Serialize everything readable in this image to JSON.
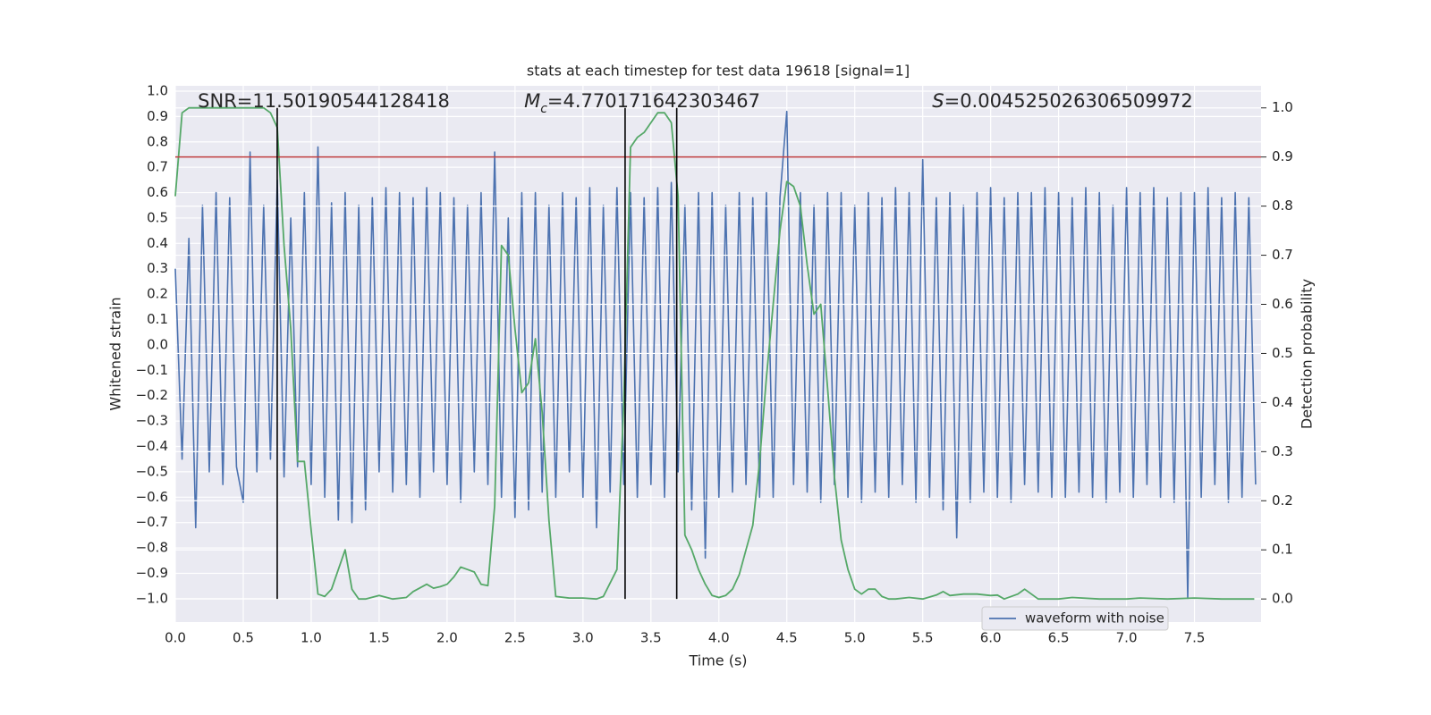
{
  "chart_data": {
    "type": "line",
    "title": "stats at each timestep for test data 19618 [signal=1]",
    "xlabel": "Time (s)",
    "ylabel": "Whitened strain",
    "y2label": "Detection probability",
    "xlim": [
      0,
      7.99
    ],
    "ylim": [
      -1.092,
      1.021
    ],
    "y2lim": [
      -0.047,
      1.045
    ],
    "xticks": [
      {
        "value": 0,
        "label": "0.0"
      },
      0.5,
      {
        "value": 1,
        "label": "1.0"
      },
      1.5,
      {
        "value": 2,
        "label": "2.0"
      },
      2.5,
      {
        "value": 3,
        "label": "3.0"
      },
      3.5,
      {
        "value": 4,
        "label": "4.0"
      },
      4.5,
      {
        "value": 5,
        "label": "5.0"
      },
      5.5,
      {
        "value": 6,
        "label": "6.0"
      },
      6.5,
      {
        "value": 7,
        "label": "7.0"
      },
      7.5
    ],
    "yticks": [
      {
        "value": -1,
        "label": "−1.0"
      },
      {
        "value": -0.9,
        "label": "−0.9"
      },
      {
        "value": -0.8,
        "label": "−0.8"
      },
      {
        "value": -0.7,
        "label": "−0.7"
      },
      {
        "value": -0.6,
        "label": "−0.6"
      },
      {
        "value": -0.5,
        "label": "−0.5"
      },
      {
        "value": -0.4,
        "label": "−0.4"
      },
      {
        "value": -0.3,
        "label": "−0.3"
      },
      {
        "value": -0.2,
        "label": "−0.2"
      },
      {
        "value": -0.1,
        "label": "−0.1"
      },
      {
        "value": 0,
        "label": "0.0"
      },
      0.1,
      0.2,
      0.3,
      0.4,
      0.5,
      0.6,
      0.7,
      0.8,
      0.9,
      {
        "value": 1,
        "label": "1.0"
      }
    ],
    "y2ticks": [
      {
        "value": 0,
        "label": "0.0"
      },
      0.1,
      0.2,
      0.3,
      0.4,
      0.5,
      0.6,
      0.7,
      0.8,
      0.9,
      {
        "value": 1,
        "label": "1.0"
      }
    ],
    "grid": true,
    "legend": "lower right",
    "series": [
      {
        "name": "waveform with noise",
        "color": "#4c72b0",
        "x": [
          0,
          0.05,
          0.1,
          0.15,
          0.2,
          0.25,
          0.3,
          0.35,
          0.4,
          0.45,
          0.5,
          0.55,
          0.6,
          0.65,
          0.7,
          0.75,
          0.8,
          0.85,
          0.9,
          0.95,
          1.0,
          1.05,
          1.1,
          1.15,
          1.2,
          1.25,
          1.3,
          1.35,
          1.4,
          1.45,
          1.5,
          1.55,
          1.6,
          1.65,
          1.7,
          1.75,
          1.8,
          1.85,
          1.9,
          1.95,
          2.0,
          2.05,
          2.1,
          2.15,
          2.2,
          2.25,
          2.3,
          2.35,
          2.4,
          2.45,
          2.5,
          2.55,
          2.6,
          2.65,
          2.7,
          2.75,
          2.8,
          2.85,
          2.9,
          2.95,
          3.0,
          3.05,
          3.1,
          3.15,
          3.2,
          3.25,
          3.3,
          3.35,
          3.4,
          3.45,
          3.5,
          3.55,
          3.6,
          3.65,
          3.7,
          3.75,
          3.8,
          3.85,
          3.9,
          3.95,
          4.0,
          4.05,
          4.1,
          4.15,
          4.2,
          4.25,
          4.3,
          4.35,
          4.4,
          4.45,
          4.5,
          4.55,
          4.6,
          4.65,
          4.7,
          4.75,
          4.8,
          4.85,
          4.9,
          4.95,
          5.0,
          5.05,
          5.1,
          5.15,
          5.2,
          5.25,
          5.3,
          5.35,
          5.4,
          5.45,
          5.5,
          5.55,
          5.6,
          5.65,
          5.7,
          5.75,
          5.8,
          5.85,
          5.9,
          5.95,
          6.0,
          6.05,
          6.1,
          6.15,
          6.2,
          6.25,
          6.3,
          6.35,
          6.4,
          6.45,
          6.5,
          6.55,
          6.6,
          6.65,
          6.7,
          6.75,
          6.8,
          6.85,
          6.9,
          6.95,
          7.0,
          7.05,
          7.1,
          7.15,
          7.2,
          7.25,
          7.3,
          7.35,
          7.4,
          7.45,
          7.5,
          7.55,
          7.6,
          7.65,
          7.7,
          7.75,
          7.8,
          7.85,
          7.9,
          7.95
        ],
        "values": [
          0.3,
          -0.45,
          0.42,
          -0.72,
          0.55,
          -0.5,
          0.6,
          -0.55,
          0.58,
          -0.48,
          -0.62,
          0.76,
          -0.5,
          0.55,
          -0.45,
          0.65,
          -0.52,
          0.5,
          -0.48,
          0.6,
          -0.55,
          0.78,
          -0.6,
          0.56,
          -0.69,
          0.6,
          -0.7,
          0.55,
          -0.65,
          0.58,
          -0.5,
          0.62,
          -0.58,
          0.6,
          -0.55,
          0.58,
          -0.6,
          0.62,
          -0.5,
          0.6,
          -0.55,
          0.58,
          -0.62,
          0.55,
          -0.5,
          0.6,
          -0.55,
          0.76,
          -0.6,
          0.5,
          -0.68,
          0.6,
          -0.65,
          0.6,
          -0.58,
          0.55,
          -0.6,
          0.6,
          -0.5,
          0.58,
          -0.6,
          0.62,
          -0.72,
          0.55,
          -0.58,
          0.62,
          -0.55,
          0.6,
          -0.6,
          0.58,
          -0.55,
          0.62,
          -0.6,
          0.64,
          -0.5,
          0.55,
          -0.65,
          0.6,
          -0.84,
          0.6,
          -0.6,
          0.55,
          -0.58,
          0.6,
          -0.55,
          0.58,
          -0.6,
          0.6,
          -0.6,
          0.58,
          0.92,
          -0.55,
          0.6,
          -0.58,
          0.55,
          -0.62,
          0.6,
          -0.55,
          0.6,
          -0.6,
          0.55,
          -0.62,
          0.6,
          -0.58,
          0.58,
          -0.6,
          0.62,
          -0.55,
          0.6,
          -0.62,
          0.73,
          -0.6,
          0.58,
          -0.65,
          0.6,
          -0.76,
          0.55,
          -0.62,
          0.6,
          -0.58,
          0.62,
          -0.6,
          0.58,
          -0.62,
          0.6,
          -0.55,
          0.6,
          -0.58,
          0.62,
          -0.6,
          0.6,
          -0.6,
          0.58,
          -0.58,
          0.62,
          -0.6,
          0.6,
          -0.62,
          0.55,
          -0.58,
          0.62,
          -0.6,
          0.6,
          -0.55,
          0.62,
          -0.6,
          0.58,
          -0.62,
          0.6,
          -1.0,
          0.6,
          -0.6,
          0.62,
          -0.55,
          0.58,
          -0.62,
          0.6,
          -0.6,
          0.58,
          -0.55
        ]
      },
      {
        "color": "#55a868",
        "axis": "y2",
        "x": [
          0,
          0.05,
          0.1,
          0.2,
          0.3,
          0.4,
          0.5,
          0.6,
          0.65,
          0.7,
          0.75,
          0.8,
          0.85,
          0.9,
          0.95,
          1.0,
          1.05,
          1.1,
          1.15,
          1.25,
          1.3,
          1.35,
          1.4,
          1.5,
          1.6,
          1.7,
          1.75,
          1.85,
          1.9,
          1.95,
          2.0,
          2.05,
          2.1,
          2.15,
          2.2,
          2.25,
          2.3,
          2.35,
          2.4,
          2.45,
          2.5,
          2.55,
          2.6,
          2.65,
          2.7,
          2.75,
          2.8,
          2.9,
          3.0,
          3.1,
          3.15,
          3.25,
          3.3,
          3.35,
          3.4,
          3.45,
          3.5,
          3.55,
          3.6,
          3.65,
          3.7,
          3.75,
          3.8,
          3.85,
          3.9,
          3.95,
          4.0,
          4.05,
          4.1,
          4.15,
          4.2,
          4.25,
          4.3,
          4.35,
          4.4,
          4.45,
          4.5,
          4.55,
          4.6,
          4.65,
          4.7,
          4.75,
          4.8,
          4.85,
          4.9,
          4.95,
          5.0,
          5.05,
          5.1,
          5.15,
          5.2,
          5.25,
          5.3,
          5.4,
          5.5,
          5.6,
          5.65,
          5.7,
          5.8,
          5.9,
          6.0,
          6.05,
          6.1,
          6.2,
          6.25,
          6.3,
          6.35,
          6.5,
          6.6,
          6.8,
          7.0,
          7.1,
          7.3,
          7.5,
          7.7,
          7.94
        ],
        "values": [
          0.82,
          0.99,
          1.0,
          1.0,
          1.0,
          1.0,
          1.0,
          1.0,
          1.0,
          0.99,
          0.96,
          0.72,
          0.55,
          0.28,
          0.28,
          0.14,
          0.01,
          0.005,
          0.02,
          0.1,
          0.02,
          0.0,
          0.0,
          0.007,
          0.0,
          0.003,
          0.015,
          0.03,
          0.022,
          0.025,
          0.03,
          0.045,
          0.065,
          0.06,
          0.055,
          0.03,
          0.027,
          0.19,
          0.72,
          0.7,
          0.55,
          0.42,
          0.44,
          0.53,
          0.38,
          0.16,
          0.005,
          0.002,
          0.002,
          0.0,
          0.005,
          0.06,
          0.4,
          0.92,
          0.94,
          0.95,
          0.97,
          0.99,
          0.99,
          0.97,
          0.82,
          0.13,
          0.1,
          0.06,
          0.03,
          0.007,
          0.003,
          0.007,
          0.02,
          0.05,
          0.1,
          0.15,
          0.28,
          0.45,
          0.6,
          0.75,
          0.85,
          0.84,
          0.8,
          0.68,
          0.58,
          0.6,
          0.43,
          0.25,
          0.12,
          0.06,
          0.02,
          0.01,
          0.02,
          0.02,
          0.005,
          0.0,
          0.0,
          0.003,
          0.0,
          0.008,
          0.015,
          0.007,
          0.01,
          0.01,
          0.007,
          0.008,
          0.0,
          0.01,
          0.02,
          0.01,
          0.0,
          0.0,
          0.003,
          0.0,
          0.0,
          0.002,
          0.0,
          0.002,
          0.0,
          0.0
        ]
      }
    ],
    "hlines": [
      {
        "y2": 0.9,
        "color": "#c03d3e"
      }
    ],
    "vlines": [
      {
        "x": 0.75,
        "y2": [
          0,
          1
        ],
        "color": "#000000"
      },
      {
        "x": 3.31,
        "y2": [
          0,
          1
        ],
        "color": "#000000"
      },
      {
        "x": 3.69,
        "y2": [
          0,
          1
        ],
        "color": "#000000"
      }
    ],
    "annotations": [
      {
        "text": "SNR=11.50190544128418"
      },
      {
        "symbol": "M",
        "subscript": "c",
        "text": "=4.770171642303467"
      },
      {
        "symbol": "S",
        "text": "=0.004525026306509972"
      }
    ]
  }
}
